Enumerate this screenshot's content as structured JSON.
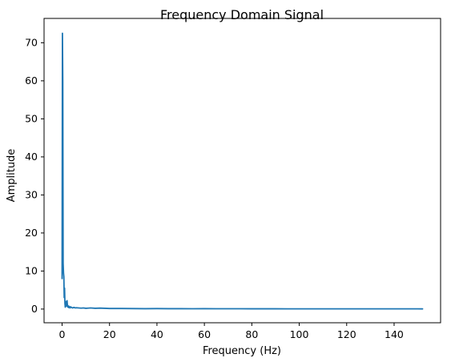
{
  "chart_data": {
    "type": "line",
    "title": "Frequency Domain Signal",
    "xlabel": "Frequency (Hz)",
    "ylabel": "Amplitude",
    "xlim": [
      -7.6,
      159.6
    ],
    "ylim": [
      -3.6,
      76.4
    ],
    "xticks": [
      0,
      20,
      40,
      60,
      80,
      100,
      120,
      140
    ],
    "yticks": [
      0,
      10,
      20,
      30,
      40,
      50,
      60,
      70
    ],
    "grid": false,
    "series": [
      {
        "color": "#1f77b4",
        "x": [
          0.0,
          0.15,
          0.3,
          0.45,
          0.6,
          0.75,
          0.9,
          1.05,
          1.2,
          1.35,
          1.5,
          1.7,
          1.9,
          2.1,
          2.3,
          2.5,
          2.7,
          3.0,
          3.3,
          3.6,
          4.0,
          4.5,
          5.0,
          5.5,
          6.0,
          7.0,
          8.0,
          9.0,
          10.0,
          11.0,
          12.0,
          14.0,
          16.0,
          18.0,
          20.0,
          25.0,
          30.0,
          35.0,
          40.0,
          45.0,
          50.0,
          55.0,
          60.0,
          65.0,
          70.0,
          75.0,
          80.0,
          85.0,
          90.0,
          95.0,
          100.0,
          105.0,
          110.0,
          115.0,
          120.0,
          125.0,
          130.0,
          135.0,
          140.0,
          145.0,
          150.0,
          152.0
        ],
        "values": [
          8.0,
          72.5,
          60.0,
          12.0,
          9.5,
          8.5,
          3.0,
          5.5,
          1.5,
          0.5,
          2.0,
          0.8,
          1.2,
          2.2,
          0.6,
          0.9,
          0.4,
          0.7,
          0.3,
          0.6,
          0.4,
          0.3,
          0.45,
          0.3,
          0.35,
          0.3,
          0.25,
          0.3,
          0.2,
          0.25,
          0.3,
          0.2,
          0.25,
          0.2,
          0.15,
          0.15,
          0.12,
          0.1,
          0.12,
          0.1,
          0.1,
          0.08,
          0.1,
          0.08,
          0.08,
          0.08,
          0.07,
          0.07,
          0.07,
          0.06,
          0.06,
          0.06,
          0.06,
          0.05,
          0.05,
          0.05,
          0.05,
          0.05,
          0.05,
          0.05,
          0.05,
          0.04
        ]
      }
    ]
  }
}
